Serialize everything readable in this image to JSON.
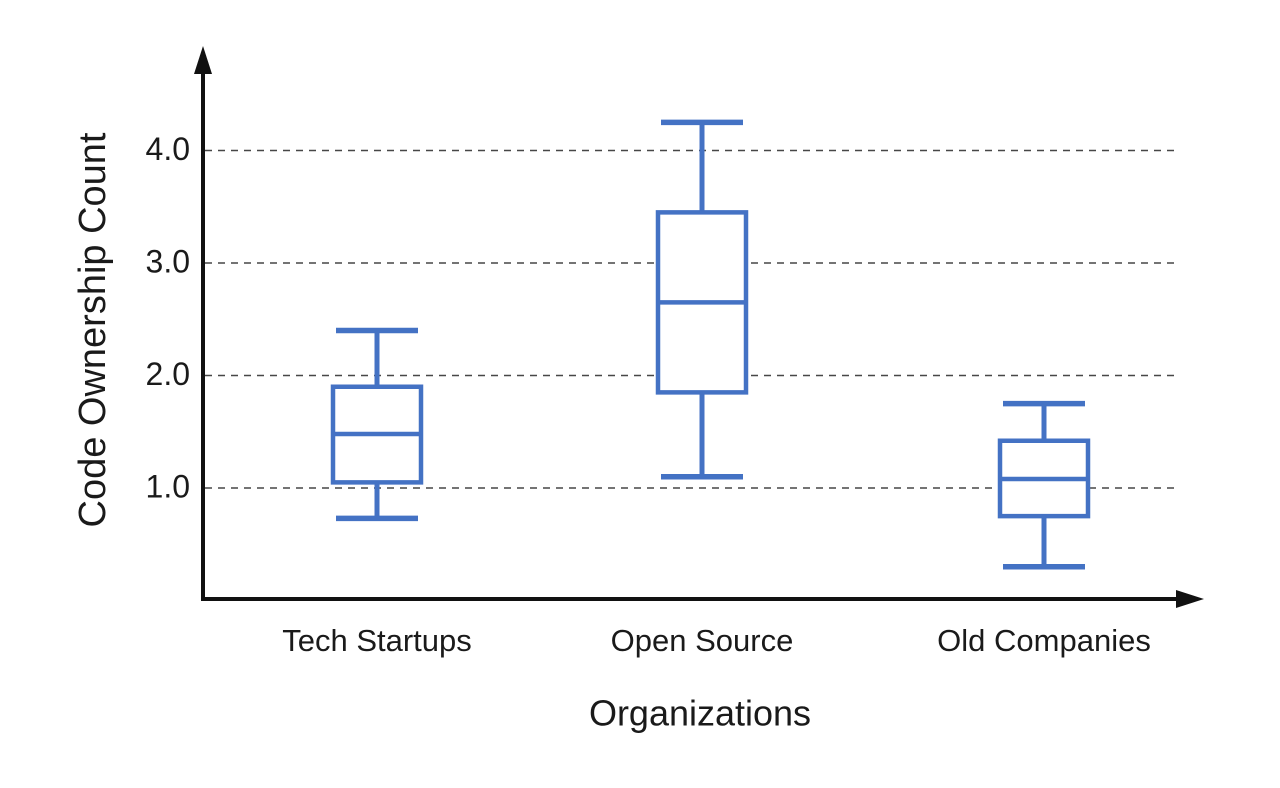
{
  "chart_data": {
    "type": "boxplot",
    "title": "",
    "xlabel": "Organizations",
    "ylabel": "Code Ownership Count",
    "categories": [
      "Tech Startups",
      "Open Source",
      "Old Companies"
    ],
    "series": [
      {
        "name": "Tech Startups",
        "whisker_low": 0.73,
        "q1": 1.05,
        "median": 1.48,
        "q3": 1.9,
        "whisker_high": 2.4
      },
      {
        "name": "Open Source",
        "whisker_low": 1.1,
        "q1": 1.85,
        "median": 2.65,
        "q3": 3.45,
        "whisker_high": 4.25
      },
      {
        "name": "Old Companies",
        "whisker_low": 0.3,
        "q1": 0.75,
        "median": 1.08,
        "q3": 1.42,
        "whisker_high": 1.75
      }
    ],
    "y_ticks": [
      {
        "value": 1.0,
        "label": "1.0"
      },
      {
        "value": 2.0,
        "label": "2.0"
      },
      {
        "value": 3.0,
        "label": "3.0"
      },
      {
        "value": 4.0,
        "label": "4.0"
      }
    ],
    "ylim": [
      0,
      4.9
    ],
    "grid": "horizontal-dashed",
    "legend": "none",
    "colors": {
      "box_stroke": "#4472C4",
      "box_fill": "#ffffff",
      "axis": "#111111",
      "grid": "#474747",
      "text": "#1a1a1a"
    }
  }
}
